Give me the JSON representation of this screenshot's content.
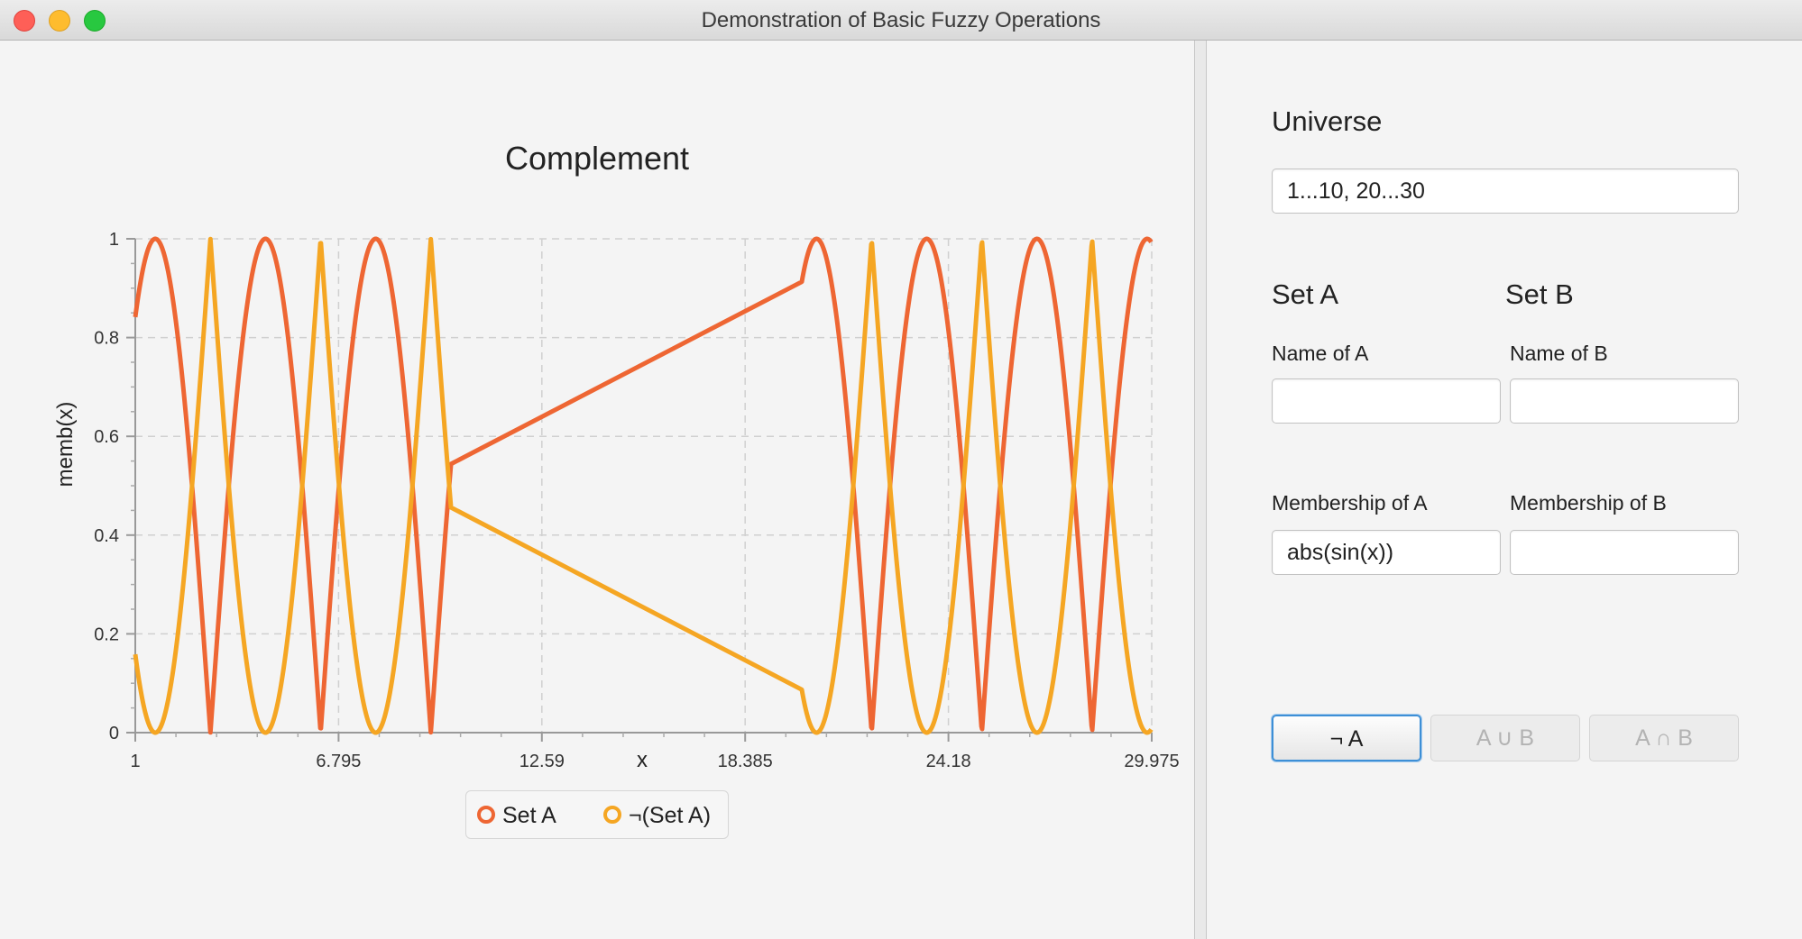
{
  "window": {
    "title": "Demonstration of Basic Fuzzy Operations"
  },
  "colors": {
    "set_a": "#ee6633",
    "complement": "#f5a623",
    "accent": "#3d8fd6"
  },
  "chart_data": {
    "type": "line",
    "title": "Complement",
    "xlabel": "x",
    "ylabel": "memb(x)",
    "xlim": [
      1,
      29.975
    ],
    "ylim": [
      0,
      1
    ],
    "x_ticks": [
      "1",
      "6.795",
      "12.59",
      "18.385",
      "24.18",
      "29.975"
    ],
    "y_ticks": [
      "0",
      "0.2",
      "0.4",
      "0.6",
      "0.8",
      "1"
    ],
    "grid": true,
    "legend_position": "bottom",
    "x_ranges": [
      [
        1,
        10
      ],
      [
        20,
        30
      ]
    ],
    "series": [
      {
        "name": "Set A",
        "function": "abs(sin(x))",
        "color": "#ee6633"
      },
      {
        "name": "¬(Set A)",
        "function": "1 - abs(sin(x))",
        "color": "#f5a623"
      }
    ]
  },
  "panel": {
    "universe_heading": "Universe",
    "universe_value": "1...10, 20...30",
    "set_a_heading": "Set A",
    "set_b_heading": "Set B",
    "name_a_label": "Name of A",
    "name_b_label": "Name of B",
    "name_a_value": "",
    "name_b_value": "",
    "membership_a_label": "Membership of A",
    "membership_b_label": "Membership of B",
    "membership_a_value": "abs(sin(x))",
    "membership_b_value": ""
  },
  "buttons": {
    "complement": "¬ A",
    "union": "A ∪ B",
    "intersection": "A ∩ B"
  }
}
